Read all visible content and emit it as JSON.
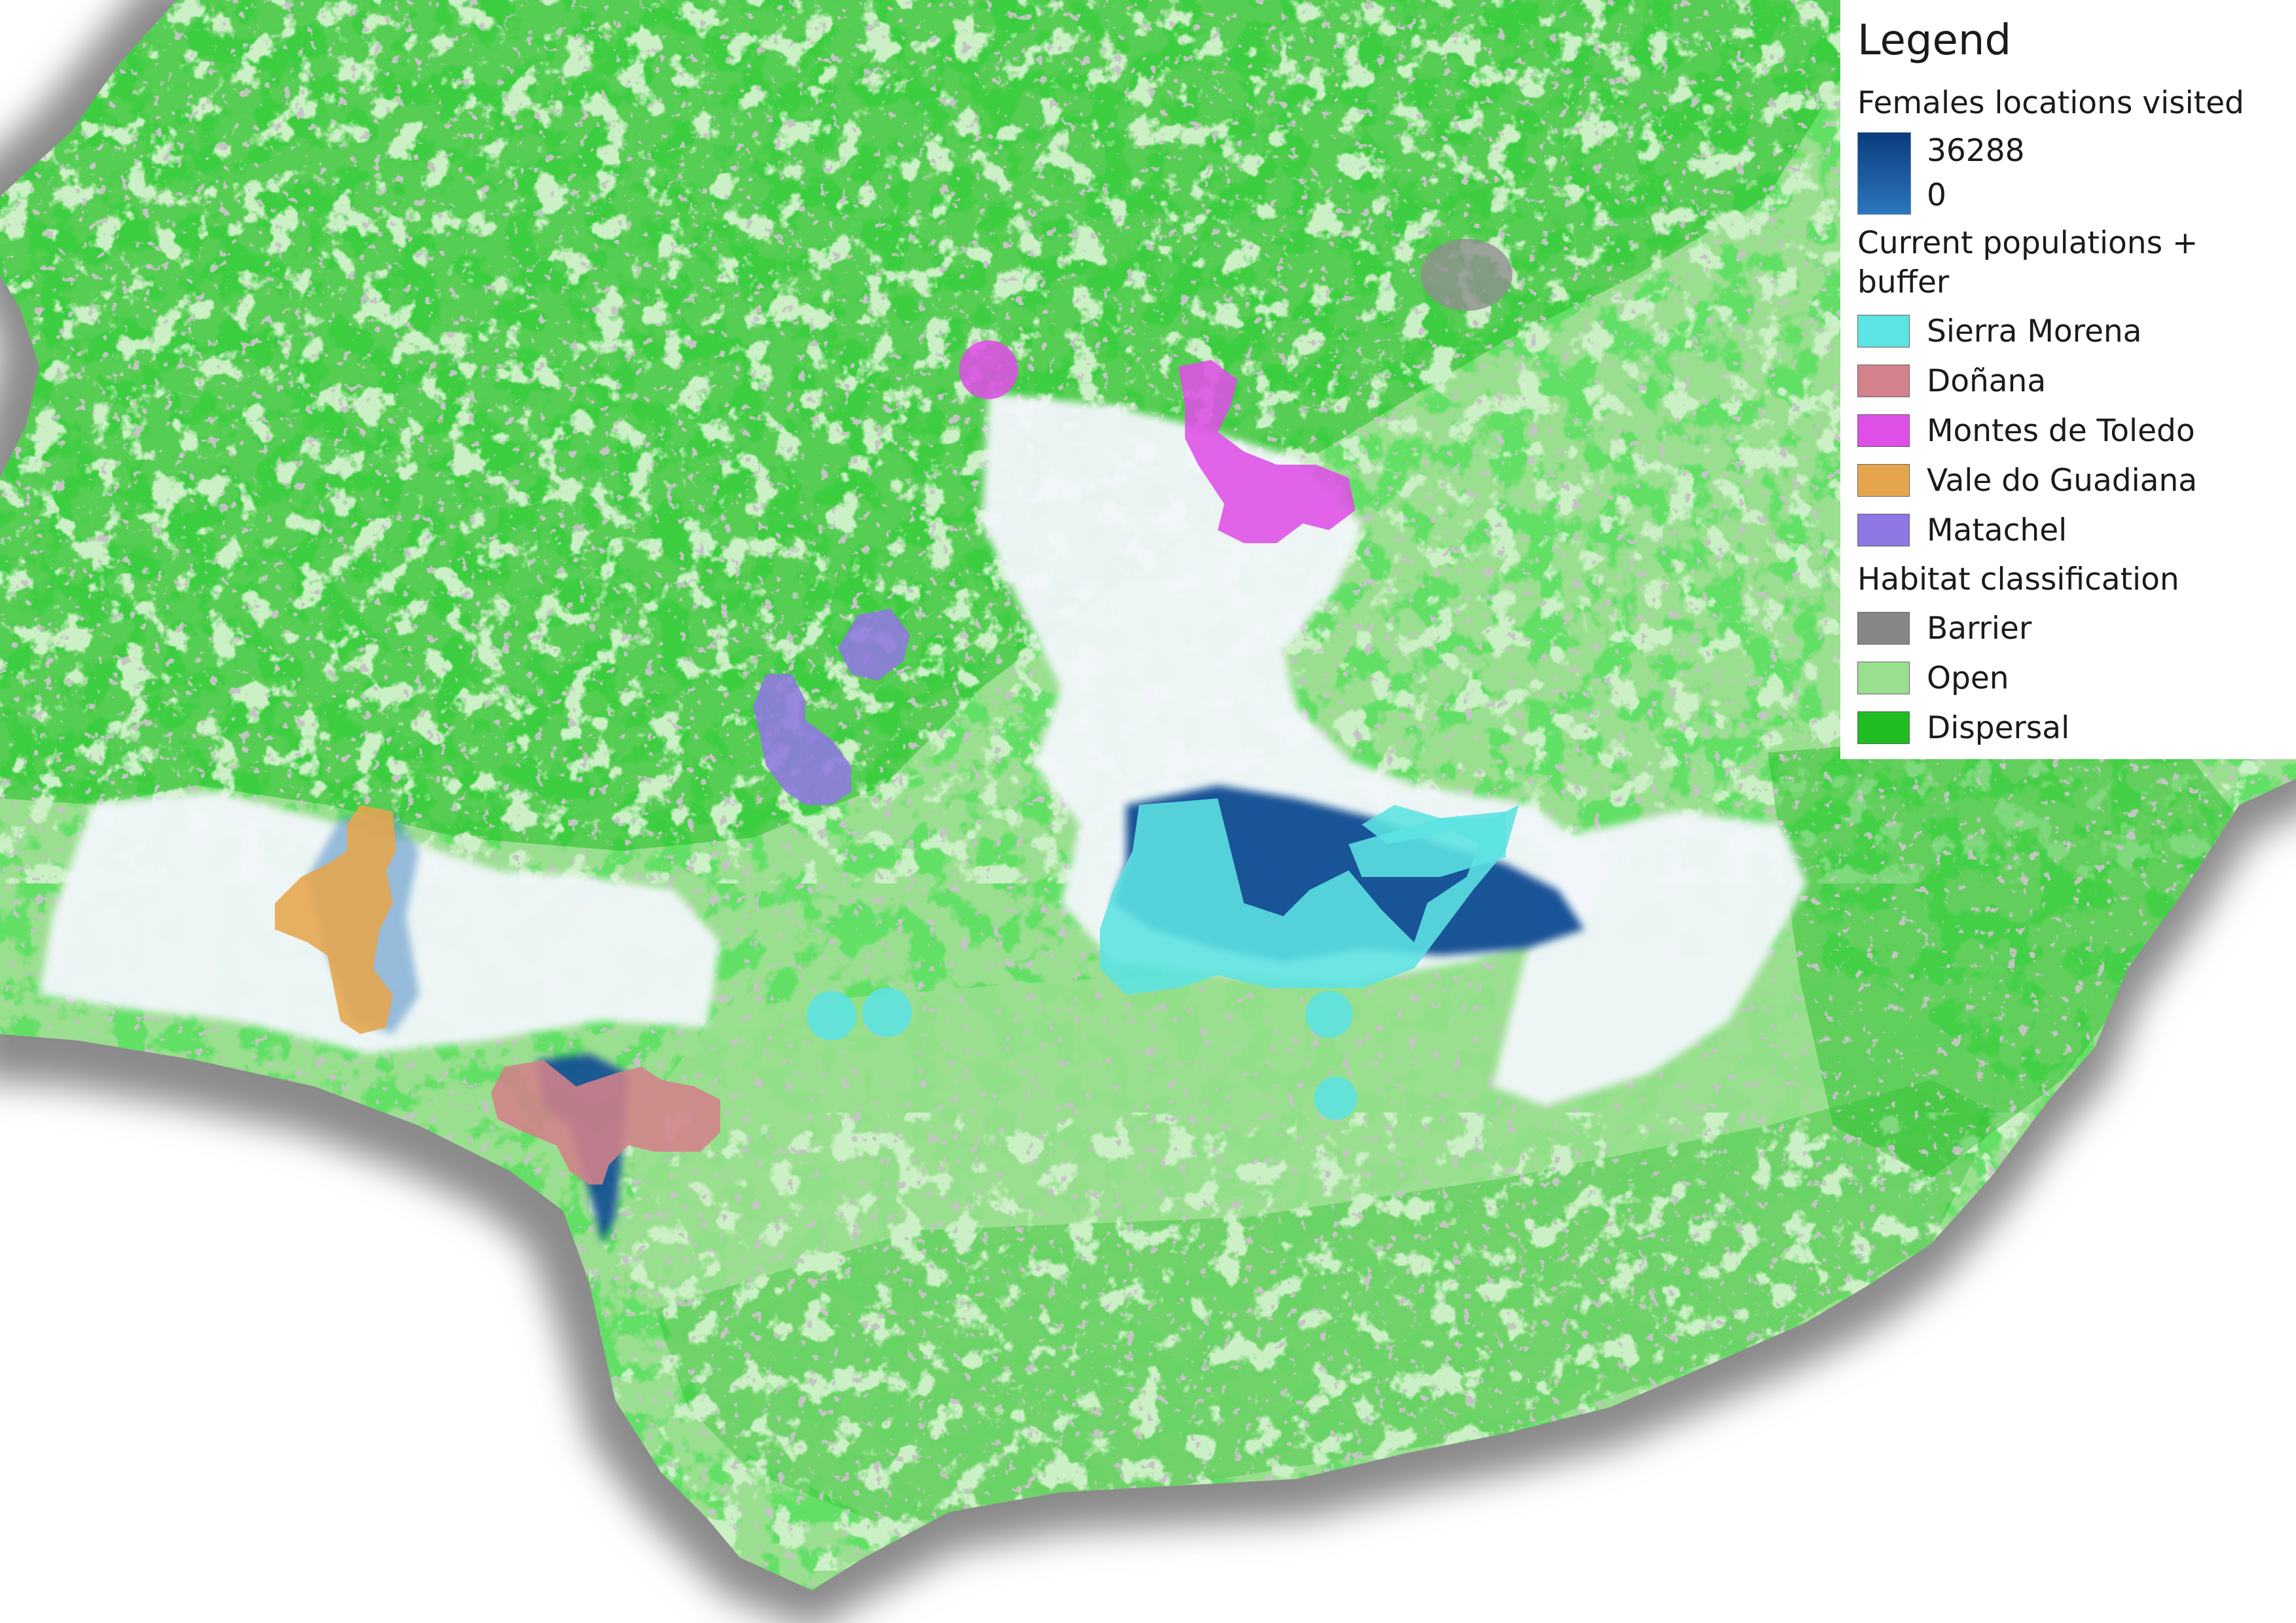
{
  "legend": {
    "title": "Legend",
    "females": {
      "heading": "Females locations visited",
      "max_label": "36288",
      "min_label": "0",
      "ramp_colors": [
        "#0b3c7d",
        "#2c77bd"
      ]
    },
    "populations": {
      "heading": "Current populations + buffer",
      "items": [
        {
          "label": "Sierra Morena",
          "color": "#5ce3e3"
        },
        {
          "label": "Doñana",
          "color": "#d3818a"
        },
        {
          "label": "Montes de Toledo",
          "color": "#de4fe6"
        },
        {
          "label": "Vale do Guadiana",
          "color": "#e5a54c"
        },
        {
          "label": "Matachel",
          "color": "#8f77e3"
        }
      ]
    },
    "habitat": {
      "heading": "Habitat classification",
      "items": [
        {
          "label": "Barrier",
          "color": "#868686"
        },
        {
          "label": "Open",
          "color": "#9adf8f"
        },
        {
          "label": "Dispersal",
          "color": "#1fbd22"
        }
      ]
    }
  },
  "map_colors": {
    "sea_shadow": "#8a8a8a",
    "open": "#9adf8f",
    "dispersal": "#1fbd22",
    "barrier": "#8e8e8e",
    "visited_low": "#f2f7fb",
    "visited_high": "#0b4b92"
  }
}
